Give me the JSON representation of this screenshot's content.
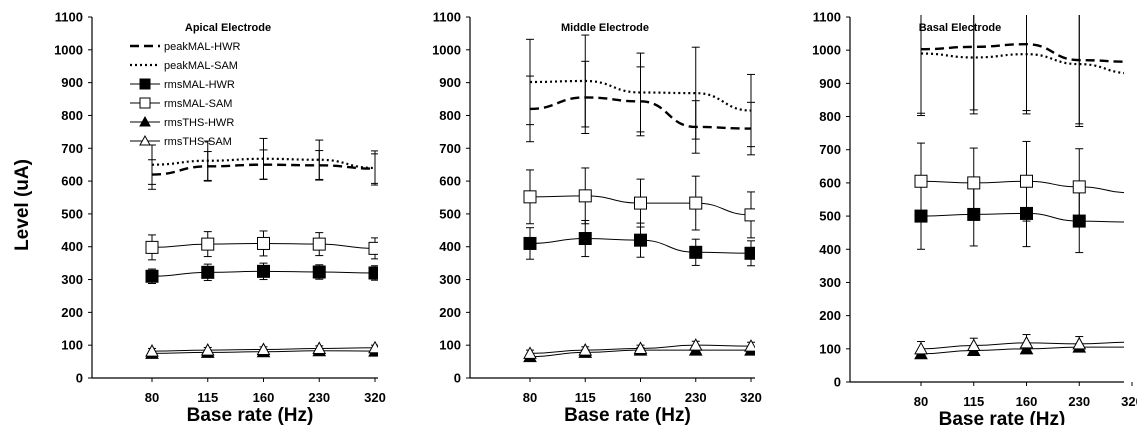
{
  "figure": {
    "ylabel": "Level (uA)"
  },
  "legend": [
    {
      "label": "peakMAL-HWR",
      "style": "dashed"
    },
    {
      "label": "peakMAL-SAM",
      "style": "dotted"
    },
    {
      "label": "rmsMAL-HWR",
      "style": "solid",
      "marker": "filled-square"
    },
    {
      "label": "rmsMAL-SAM",
      "style": "solid",
      "marker": "open-square"
    },
    {
      "label": "rmsTHS-HWR",
      "style": "solid",
      "marker": "filled-triangle"
    },
    {
      "label": "rmsTHS-SAM",
      "style": "solid",
      "marker": "open-triangle"
    }
  ],
  "chart_data": [
    {
      "type": "line",
      "title": "Apical Electrode",
      "xlabel": "Base rate (Hz)",
      "ylabel": "Level (uA)",
      "categories": [
        "80",
        "115",
        "160",
        "230",
        "320"
      ],
      "ylim": [
        0,
        1100
      ],
      "yticks": [
        "0",
        "100",
        "200",
        "300",
        "400",
        "500",
        "600",
        "700",
        "800",
        "900",
        "1000",
        "1100"
      ],
      "series": [
        {
          "name": "peakMAL-HWR",
          "values": [
            620,
            645,
            650,
            648,
            638
          ],
          "err": [
            45,
            45,
            45,
            45,
            45
          ]
        },
        {
          "name": "peakMAL-SAM",
          "values": [
            650,
            662,
            668,
            665,
            640
          ],
          "err": [
            60,
            60,
            62,
            60,
            52
          ]
        },
        {
          "name": "rmsMAL-HWR",
          "values": [
            310,
            322,
            325,
            323,
            320
          ],
          "err": [
            22,
            25,
            25,
            22,
            22
          ]
        },
        {
          "name": "rmsMAL-SAM",
          "values": [
            398,
            408,
            410,
            408,
            395
          ],
          "err": [
            38,
            38,
            38,
            35,
            32
          ]
        },
        {
          "name": "rmsTHS-HWR",
          "values": [
            75,
            78,
            80,
            83,
            82
          ],
          "err": [
            6,
            6,
            6,
            6,
            6
          ]
        },
        {
          "name": "rmsTHS-SAM",
          "values": [
            82,
            85,
            87,
            90,
            92
          ],
          "err": [
            8,
            8,
            8,
            8,
            8
          ]
        }
      ]
    },
    {
      "type": "line",
      "title": "Middle Electrode",
      "xlabel": "Base rate (Hz)",
      "ylabel": "Level (uA)",
      "categories": [
        "80",
        "115",
        "160",
        "230",
        "320"
      ],
      "ylim": [
        0,
        1100
      ],
      "yticks": [
        "0",
        "100",
        "200",
        "300",
        "400",
        "500",
        "600",
        "700",
        "800",
        "900",
        "1000",
        "1100"
      ],
      "series": [
        {
          "name": "peakMAL-HWR",
          "values": [
            820,
            855,
            843,
            765,
            760
          ],
          "err": [
            100,
            110,
            105,
            80,
            80
          ]
        },
        {
          "name": "peakMAL-SAM",
          "values": [
            902,
            905,
            870,
            868,
            815
          ],
          "err": [
            130,
            140,
            120,
            140,
            110
          ]
        },
        {
          "name": "rmsMAL-HWR",
          "values": [
            410,
            425,
            420,
            383,
            380
          ],
          "err": [
            48,
            55,
            52,
            40,
            38
          ]
        },
        {
          "name": "rmsMAL-SAM",
          "values": [
            552,
            555,
            533,
            533,
            497
          ],
          "err": [
            82,
            85,
            73,
            82,
            70
          ]
        },
        {
          "name": "rmsTHS-HWR",
          "values": [
            65,
            78,
            85,
            85,
            85
          ],
          "err": [
            8,
            8,
            8,
            8,
            8
          ]
        },
        {
          "name": "rmsTHS-SAM",
          "values": [
            75,
            85,
            90,
            100,
            97
          ],
          "err": [
            10,
            10,
            10,
            12,
            12
          ]
        }
      ]
    },
    {
      "type": "line",
      "title": "Basal Electrode",
      "xlabel": "Base rate (Hz)",
      "ylabel": "Level (uA)",
      "categories": [
        "80",
        "115",
        "160",
        "230",
        "320"
      ],
      "ylim": [
        0,
        1100
      ],
      "yticks": [
        "0",
        "100",
        "200",
        "300",
        "400",
        "500",
        "600",
        "700",
        "800",
        "900",
        "1000",
        "1100"
      ],
      "series": [
        {
          "name": "peakMAL-HWR",
          "values": [
            1003,
            1010,
            1018,
            970,
            965
          ],
          "err": [
            200,
            190,
            200,
            200,
            200
          ]
        },
        {
          "name": "peakMAL-SAM",
          "values": [
            990,
            978,
            988,
            958,
            930
          ],
          "err": [
            180,
            170,
            180,
            180,
            170
          ]
        },
        {
          "name": "rmsMAL-HWR",
          "values": [
            500,
            505,
            508,
            485,
            482
          ],
          "err": [
            100,
            95,
            100,
            95,
            95
          ]
        },
        {
          "name": "rmsMAL-SAM",
          "values": [
            605,
            600,
            605,
            588,
            570
          ],
          "err": [
            115,
            105,
            120,
            115,
            110
          ]
        },
        {
          "name": "rmsTHS-HWR",
          "values": [
            85,
            95,
            100,
            105,
            105
          ],
          "err": [
            10,
            10,
            10,
            10,
            10
          ]
        },
        {
          "name": "rmsTHS-SAM",
          "values": [
            100,
            110,
            118,
            115,
            120
          ],
          "err": [
            22,
            22,
            25,
            22,
            22
          ]
        }
      ]
    }
  ]
}
